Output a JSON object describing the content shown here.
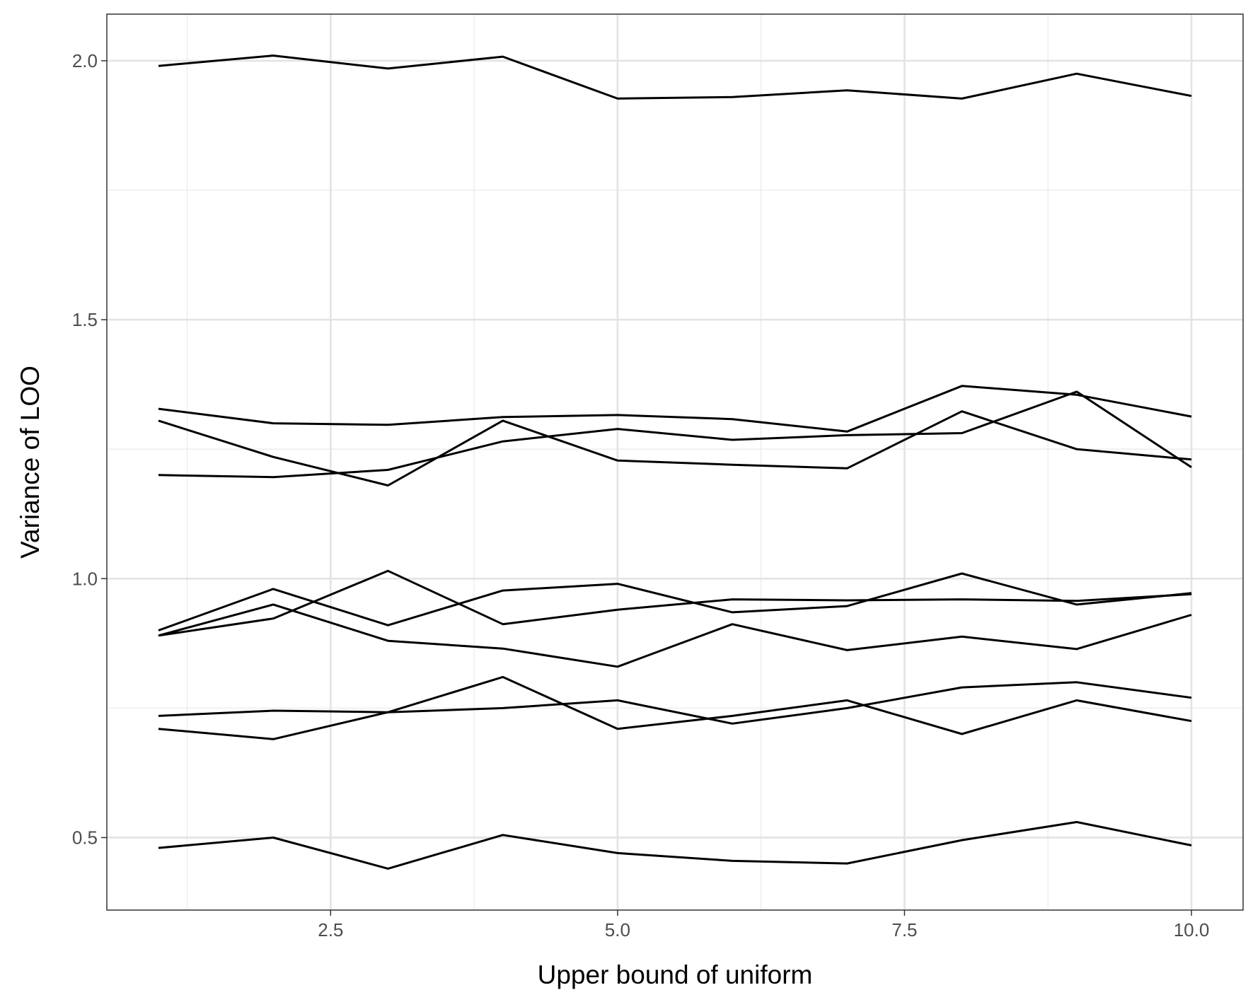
{
  "chart_data": {
    "type": "line",
    "title": "",
    "xlabel": "Upper bound of uniform",
    "ylabel": "Variance of LOO",
    "xlim": [
      0.55,
      10.45
    ],
    "ylim": [
      0.36,
      2.09
    ],
    "x_ticks": [
      2.5,
      5.0,
      7.5,
      10.0
    ],
    "x_tick_labels": [
      "2.5",
      "5.0",
      "7.5",
      "10.0"
    ],
    "y_ticks": [
      0.5,
      1.0,
      1.5,
      2.0
    ],
    "y_tick_labels": [
      "0.5",
      "1.0",
      "1.5",
      "2.0"
    ],
    "grid": true,
    "legend": "none",
    "line_color": "#000000",
    "x": [
      1,
      2,
      3,
      4,
      5,
      6,
      7,
      8,
      9,
      10
    ],
    "series": [
      {
        "values": [
          1.99,
          2.01,
          1.985,
          2.008,
          1.927,
          1.93,
          1.943,
          1.927,
          1.975,
          1.932
        ]
      },
      {
        "values": [
          1.328,
          1.3,
          1.297,
          1.312,
          1.316,
          1.308,
          1.284,
          1.372,
          1.355,
          1.313
        ]
      },
      {
        "values": [
          1.305,
          1.235,
          1.18,
          1.305,
          1.228,
          1.22,
          1.213,
          1.323,
          1.25,
          1.23
        ]
      },
      {
        "values": [
          1.2,
          1.196,
          1.21,
          1.265,
          1.289,
          1.268,
          1.277,
          1.281,
          1.361,
          1.215
        ]
      },
      {
        "values": [
          0.9,
          0.98,
          0.91,
          0.977,
          0.99,
          0.935,
          0.947,
          1.01,
          0.95,
          0.972
        ]
      },
      {
        "values": [
          0.89,
          0.923,
          1.015,
          0.912,
          0.94,
          0.96,
          0.958,
          0.96,
          0.957,
          0.97
        ]
      },
      {
        "values": [
          0.89,
          0.95,
          0.88,
          0.865,
          0.83,
          0.912,
          0.862,
          0.888,
          0.864,
          0.93
        ]
      },
      {
        "values": [
          0.735,
          0.745,
          0.742,
          0.81,
          0.71,
          0.735,
          0.765,
          0.7,
          0.765,
          0.725
        ]
      },
      {
        "values": [
          0.71,
          0.69,
          0.742,
          0.75,
          0.765,
          0.72,
          0.75,
          0.79,
          0.8,
          0.77
        ]
      },
      {
        "values": [
          0.48,
          0.5,
          0.44,
          0.505,
          0.47,
          0.455,
          0.45,
          0.495,
          0.53,
          0.485
        ]
      }
    ]
  }
}
